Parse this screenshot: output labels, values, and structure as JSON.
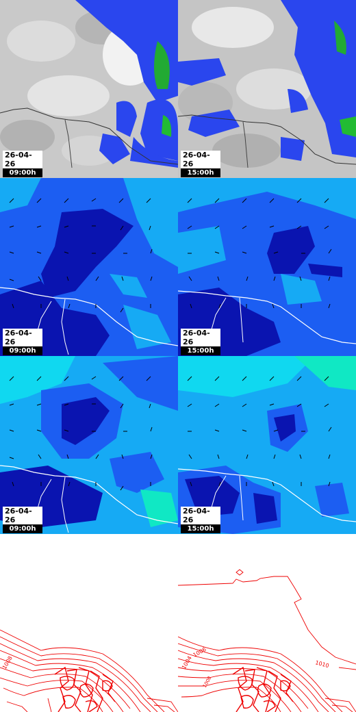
{
  "rows": [
    {
      "id": "clouds",
      "panels": [
        {
          "date": "26-04-26",
          "time": "09:00h"
        },
        {
          "date": "26-04-26",
          "time": "15:00h"
        }
      ]
    },
    {
      "id": "wind-a",
      "panels": [
        {
          "date": "26-04-26",
          "time": "09:00h"
        },
        {
          "date": "26-04-26",
          "time": "15:00h"
        }
      ]
    },
    {
      "id": "wind-b",
      "panels": [
        {
          "date": "26-04-26",
          "time": "09:00h"
        },
        {
          "date": "26-04-26",
          "time": "15:00h"
        }
      ]
    },
    {
      "id": "pressure",
      "panels": [
        {
          "labels": [
            "1008"
          ]
        },
        {
          "labels": [
            "1004",
            "1006",
            "1010",
            "1008"
          ]
        }
      ]
    }
  ],
  "colors": {
    "cloud_gray": "#bfbfbf",
    "rain_blue": "#2a46ee",
    "rain_green": "#22bb33",
    "wind_deep": "#0a14b0",
    "wind_mid": "#1c5ef2",
    "wind_light": "#16aaf4",
    "wind_cyan": "#10d8f0",
    "isobar": "#ee0000",
    "coast": "#ffffff"
  }
}
